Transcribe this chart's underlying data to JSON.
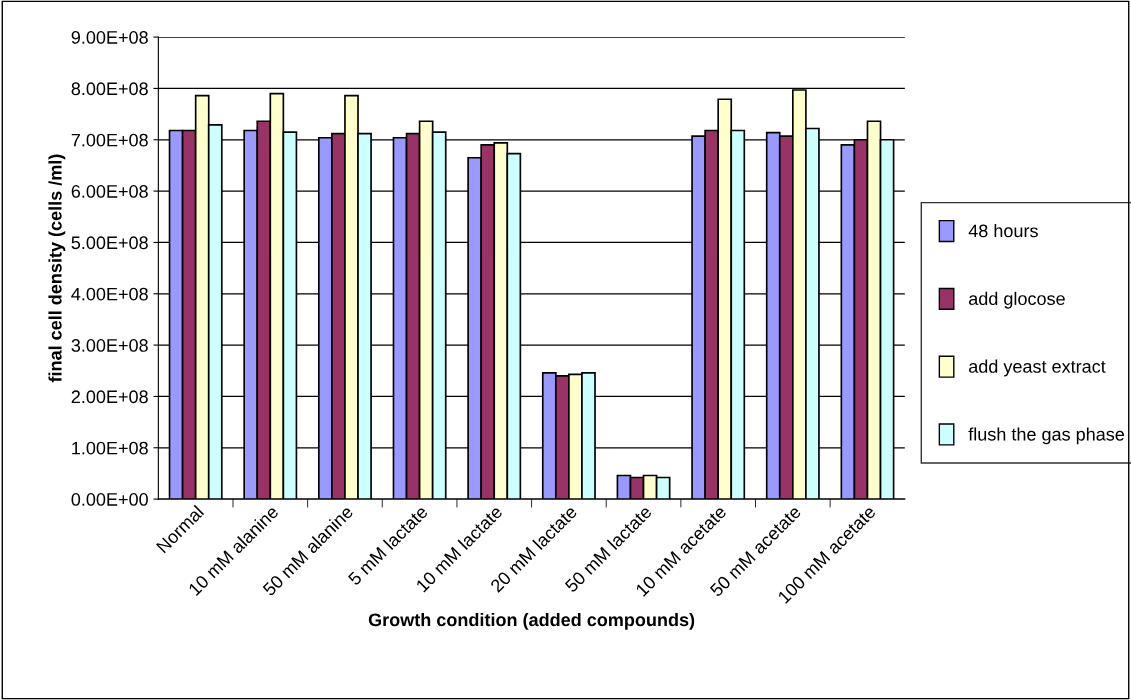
{
  "chart_data": {
    "type": "bar",
    "xlabel": "Growth condition (added compounds)",
    "ylabel": "final cell density (cells /ml)",
    "categories": [
      "Normal",
      "10 mM alanine",
      "50 mM alanine",
      "5 mM lactate",
      "10 mM lactate",
      "20 mM lactate",
      "50 mM lactate",
      "10 mM acetate",
      "50 mM acetate",
      "100 mM acetate"
    ],
    "series": [
      {
        "name": "48 hours",
        "color": "#9999ff",
        "values": [
          718000000,
          718000000,
          704000000,
          704000000,
          665000000,
          246000000,
          46000000,
          707000000,
          714000000,
          690000000
        ]
      },
      {
        "name": "add glocose",
        "color": "#993366",
        "values": [
          718000000,
          736000000,
          712000000,
          712000000,
          690000000,
          240000000,
          42000000,
          718000000,
          707000000,
          700000000
        ]
      },
      {
        "name": "add yeast extract",
        "color": "#ffffcc",
        "values": [
          786000000,
          790000000,
          786000000,
          736000000,
          694000000,
          243000000,
          46000000,
          779000000,
          797000000,
          736000000
        ]
      },
      {
        "name": "flush the gas phase",
        "color": "#ccffff",
        "values": [
          729000000,
          715000000,
          712000000,
          715000000,
          673000000,
          246000000,
          42000000,
          718000000,
          722000000,
          700000000
        ]
      }
    ],
    "ylim": [
      0,
      900000000
    ],
    "yticks": [
      {
        "value": 0,
        "label": "0.00E+00"
      },
      {
        "value": 100000000,
        "label": "1.00E+08"
      },
      {
        "value": 200000000,
        "label": "2.00E+08"
      },
      {
        "value": 300000000,
        "label": "3.00E+08"
      },
      {
        "value": 400000000,
        "label": "4.00E+08"
      },
      {
        "value": 500000000,
        "label": "5.00E+08"
      },
      {
        "value": 600000000,
        "label": "6.00E+08"
      },
      {
        "value": 700000000,
        "label": "7.00E+08"
      },
      {
        "value": 800000000,
        "label": "8.00E+08"
      },
      {
        "value": 900000000,
        "label": "9.00E+08"
      }
    ],
    "grid": "y",
    "legend": "right"
  }
}
